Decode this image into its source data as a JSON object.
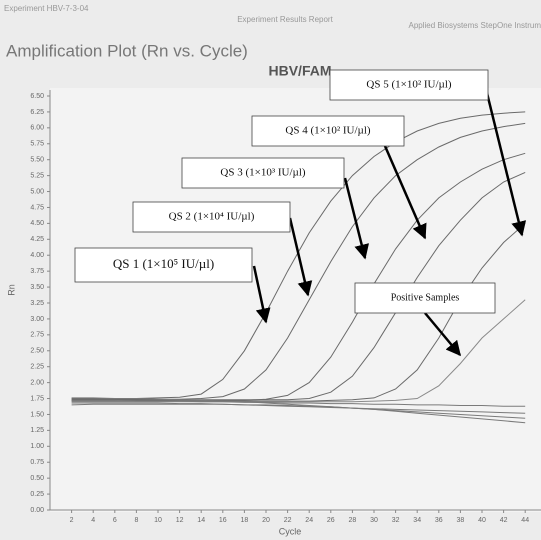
{
  "header": {
    "left": "Experiment HBV-7-3-04",
    "center": "Experiment Results Report",
    "right": "Applied Biosystems StepOne Instrum"
  },
  "chart_data": {
    "type": "line",
    "title": "Amplification Plot (Rn vs. Cycle)",
    "subtitle": "HBV/FAM",
    "x_label": "Cycle",
    "y_label": "Rn",
    "x": [
      2,
      4,
      6,
      8,
      10,
      12,
      14,
      16,
      18,
      20,
      22,
      24,
      26,
      28,
      30,
      32,
      34,
      36,
      38,
      40,
      42,
      44
    ],
    "xlim": [
      0,
      45
    ],
    "xticks": [
      2,
      4,
      6,
      8,
      10,
      12,
      14,
      16,
      18,
      20,
      22,
      24,
      26,
      28,
      30,
      32,
      34,
      36,
      38,
      40,
      42,
      44
    ],
    "ylim": [
      0,
      6.5
    ],
    "yticks": [
      {
        "value": 0,
        "label": "0.00"
      },
      {
        "value": 0.25,
        "label": "0.25"
      },
      {
        "value": 0.5,
        "label": "0.50"
      },
      {
        "value": 0.75,
        "label": "0.75"
      },
      {
        "value": 1,
        "label": "1.00"
      },
      {
        "value": 1.25,
        "label": "1.25"
      },
      {
        "value": 1.5,
        "label": "1.50"
      },
      {
        "value": 1.75,
        "label": "1.75"
      },
      {
        "value": 2,
        "label": "2.00"
      },
      {
        "value": 2.25,
        "label": "2.25"
      },
      {
        "value": 2.5,
        "label": "2.50"
      },
      {
        "value": 2.75,
        "label": "2.75"
      },
      {
        "value": 3,
        "label": "3.00"
      },
      {
        "value": 3.25,
        "label": "3.25"
      },
      {
        "value": 3.5,
        "label": "3.50"
      },
      {
        "value": 3.75,
        "label": "3.75"
      },
      {
        "value": 4,
        "label": "4.00"
      },
      {
        "value": 4.25,
        "label": "4.25"
      },
      {
        "value": 4.5,
        "label": "4.50"
      },
      {
        "value": 4.75,
        "label": "4.75"
      },
      {
        "value": 5,
        "label": "5.00"
      },
      {
        "value": 5.25,
        "label": "5.25"
      },
      {
        "value": 5.5,
        "label": "5.50"
      },
      {
        "value": 5.75,
        "label": "5.75"
      },
      {
        "value": 6,
        "label": "6.00"
      },
      {
        "value": 6.25,
        "label": "6.25"
      },
      {
        "value": 6.5,
        "label": "6.50"
      }
    ],
    "grid": false,
    "series": [
      {
        "color": "#6a6a6a",
        "values": [
          1.75,
          1.75,
          1.75,
          1.75,
          1.76,
          1.77,
          1.82,
          2.05,
          2.5,
          3.1,
          3.75,
          4.35,
          4.85,
          5.25,
          5.55,
          5.78,
          5.95,
          6.07,
          6.15,
          6.2,
          6.23,
          6.25
        ]
      },
      {
        "color": "#6a6a6a",
        "values": [
          1.74,
          1.74,
          1.74,
          1.74,
          1.74,
          1.74,
          1.75,
          1.78,
          1.9,
          2.2,
          2.7,
          3.3,
          3.9,
          4.45,
          4.9,
          5.25,
          5.5,
          5.7,
          5.85,
          5.95,
          6.02,
          6.07
        ]
      },
      {
        "color": "#6a6a6a",
        "values": [
          1.72,
          1.72,
          1.72,
          1.72,
          1.72,
          1.72,
          1.72,
          1.72,
          1.72,
          1.74,
          1.8,
          2.0,
          2.4,
          2.95,
          3.55,
          4.1,
          4.55,
          4.9,
          5.15,
          5.35,
          5.5,
          5.6
        ]
      },
      {
        "color": "#6a6a6a",
        "values": [
          1.73,
          1.73,
          1.73,
          1.73,
          1.73,
          1.73,
          1.73,
          1.73,
          1.73,
          1.73,
          1.73,
          1.75,
          1.85,
          2.1,
          2.55,
          3.1,
          3.65,
          4.15,
          4.55,
          4.9,
          5.15,
          5.3
        ]
      },
      {
        "color": "#6a6a6a",
        "values": [
          1.71,
          1.71,
          1.71,
          1.71,
          1.71,
          1.71,
          1.71,
          1.71,
          1.71,
          1.71,
          1.71,
          1.71,
          1.72,
          1.73,
          1.76,
          1.9,
          2.2,
          2.7,
          3.3,
          3.8,
          4.2,
          4.5
        ]
      },
      {
        "color": "#8a8a8a",
        "values": [
          1.7,
          1.7,
          1.7,
          1.7,
          1.7,
          1.7,
          1.7,
          1.7,
          1.7,
          1.7,
          1.7,
          1.7,
          1.7,
          1.7,
          1.71,
          1.72,
          1.75,
          1.95,
          2.3,
          2.7,
          3.0,
          3.3
        ]
      },
      {
        "color": "#7a7a7a",
        "values": [
          1.76,
          1.76,
          1.75,
          1.75,
          1.74,
          1.73,
          1.72,
          1.71,
          1.7,
          1.68,
          1.66,
          1.64,
          1.62,
          1.6,
          1.58,
          1.56,
          1.54,
          1.52,
          1.5,
          1.48,
          1.46,
          1.44
        ]
      },
      {
        "color": "#7a7a7a",
        "values": [
          1.68,
          1.68,
          1.68,
          1.68,
          1.68,
          1.67,
          1.67,
          1.66,
          1.65,
          1.64,
          1.63,
          1.62,
          1.61,
          1.6,
          1.59,
          1.58,
          1.57,
          1.56,
          1.55,
          1.54,
          1.53,
          1.52
        ]
      },
      {
        "color": "#7a7a7a",
        "values": [
          1.65,
          1.66,
          1.66,
          1.66,
          1.66,
          1.66,
          1.66,
          1.66,
          1.65,
          1.65,
          1.64,
          1.63,
          1.62,
          1.6,
          1.58,
          1.55,
          1.52,
          1.49,
          1.46,
          1.43,
          1.4,
          1.37
        ]
      },
      {
        "color": "#7a7a7a",
        "values": [
          1.72,
          1.72,
          1.72,
          1.71,
          1.71,
          1.71,
          1.7,
          1.7,
          1.69,
          1.69,
          1.68,
          1.68,
          1.67,
          1.67,
          1.66,
          1.66,
          1.65,
          1.65,
          1.64,
          1.64,
          1.63,
          1.63
        ]
      }
    ],
    "annotations": [
      {
        "text": "QS 5 (1×10² IU/µl)"
      },
      {
        "text": "QS 4 (1×10² IU/µl)"
      },
      {
        "text": "QS 3 (1×10³ IU/µl)"
      },
      {
        "text": "QS 2 (1×10⁴ IU/µl)"
      },
      {
        "text": "QS 1 (1×10⁵ IU/µl)"
      },
      {
        "text": "Positive Samples"
      }
    ]
  }
}
